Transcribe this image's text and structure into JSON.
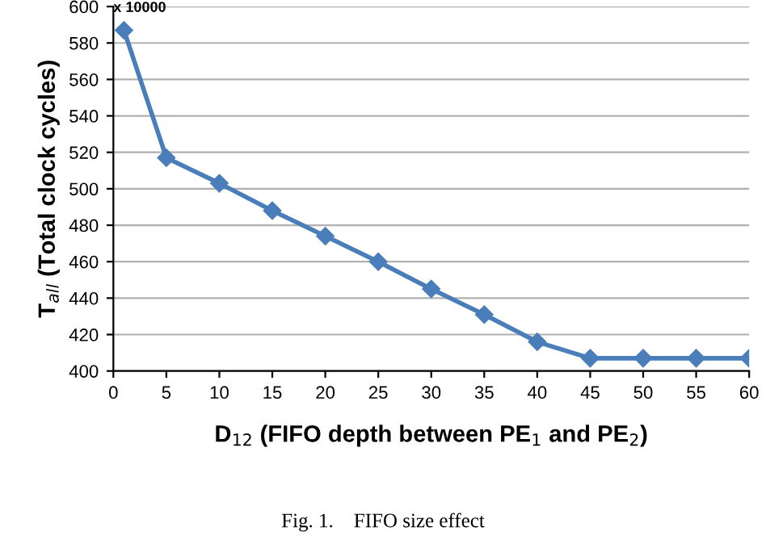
{
  "chart_data": {
    "type": "line",
    "xlabel": "D$_{12}$ (FIFO depth between PE$_{1}$ and PE$_{2}$)",
    "ylabel": "T$_{all}$ (Total clock cycles)",
    "annotations": [
      "x 10000",
      "Fig. 1.    FIFO size effect"
    ],
    "x": [
      1,
      5,
      10,
      15,
      20,
      25,
      30,
      35,
      40,
      45,
      50,
      55,
      60
    ],
    "series": [
      {
        "color": "#4a7ebb",
        "values": [
          587,
          517,
          503,
          488,
          474,
          460,
          445,
          431,
          416,
          407,
          407,
          407,
          407
        ]
      }
    ],
    "xlim": [
      0,
      60
    ],
    "xticks": [
      0,
      5,
      10,
      15,
      20,
      25,
      30,
      35,
      40,
      45,
      50,
      55,
      60
    ],
    "ylim": [
      400,
      600
    ],
    "yticks": [
      400,
      420,
      440,
      460,
      480,
      500,
      520,
      540,
      560,
      580,
      600
    ],
    "grid": "y",
    "marker": "diamond",
    "line_style": "solid"
  }
}
